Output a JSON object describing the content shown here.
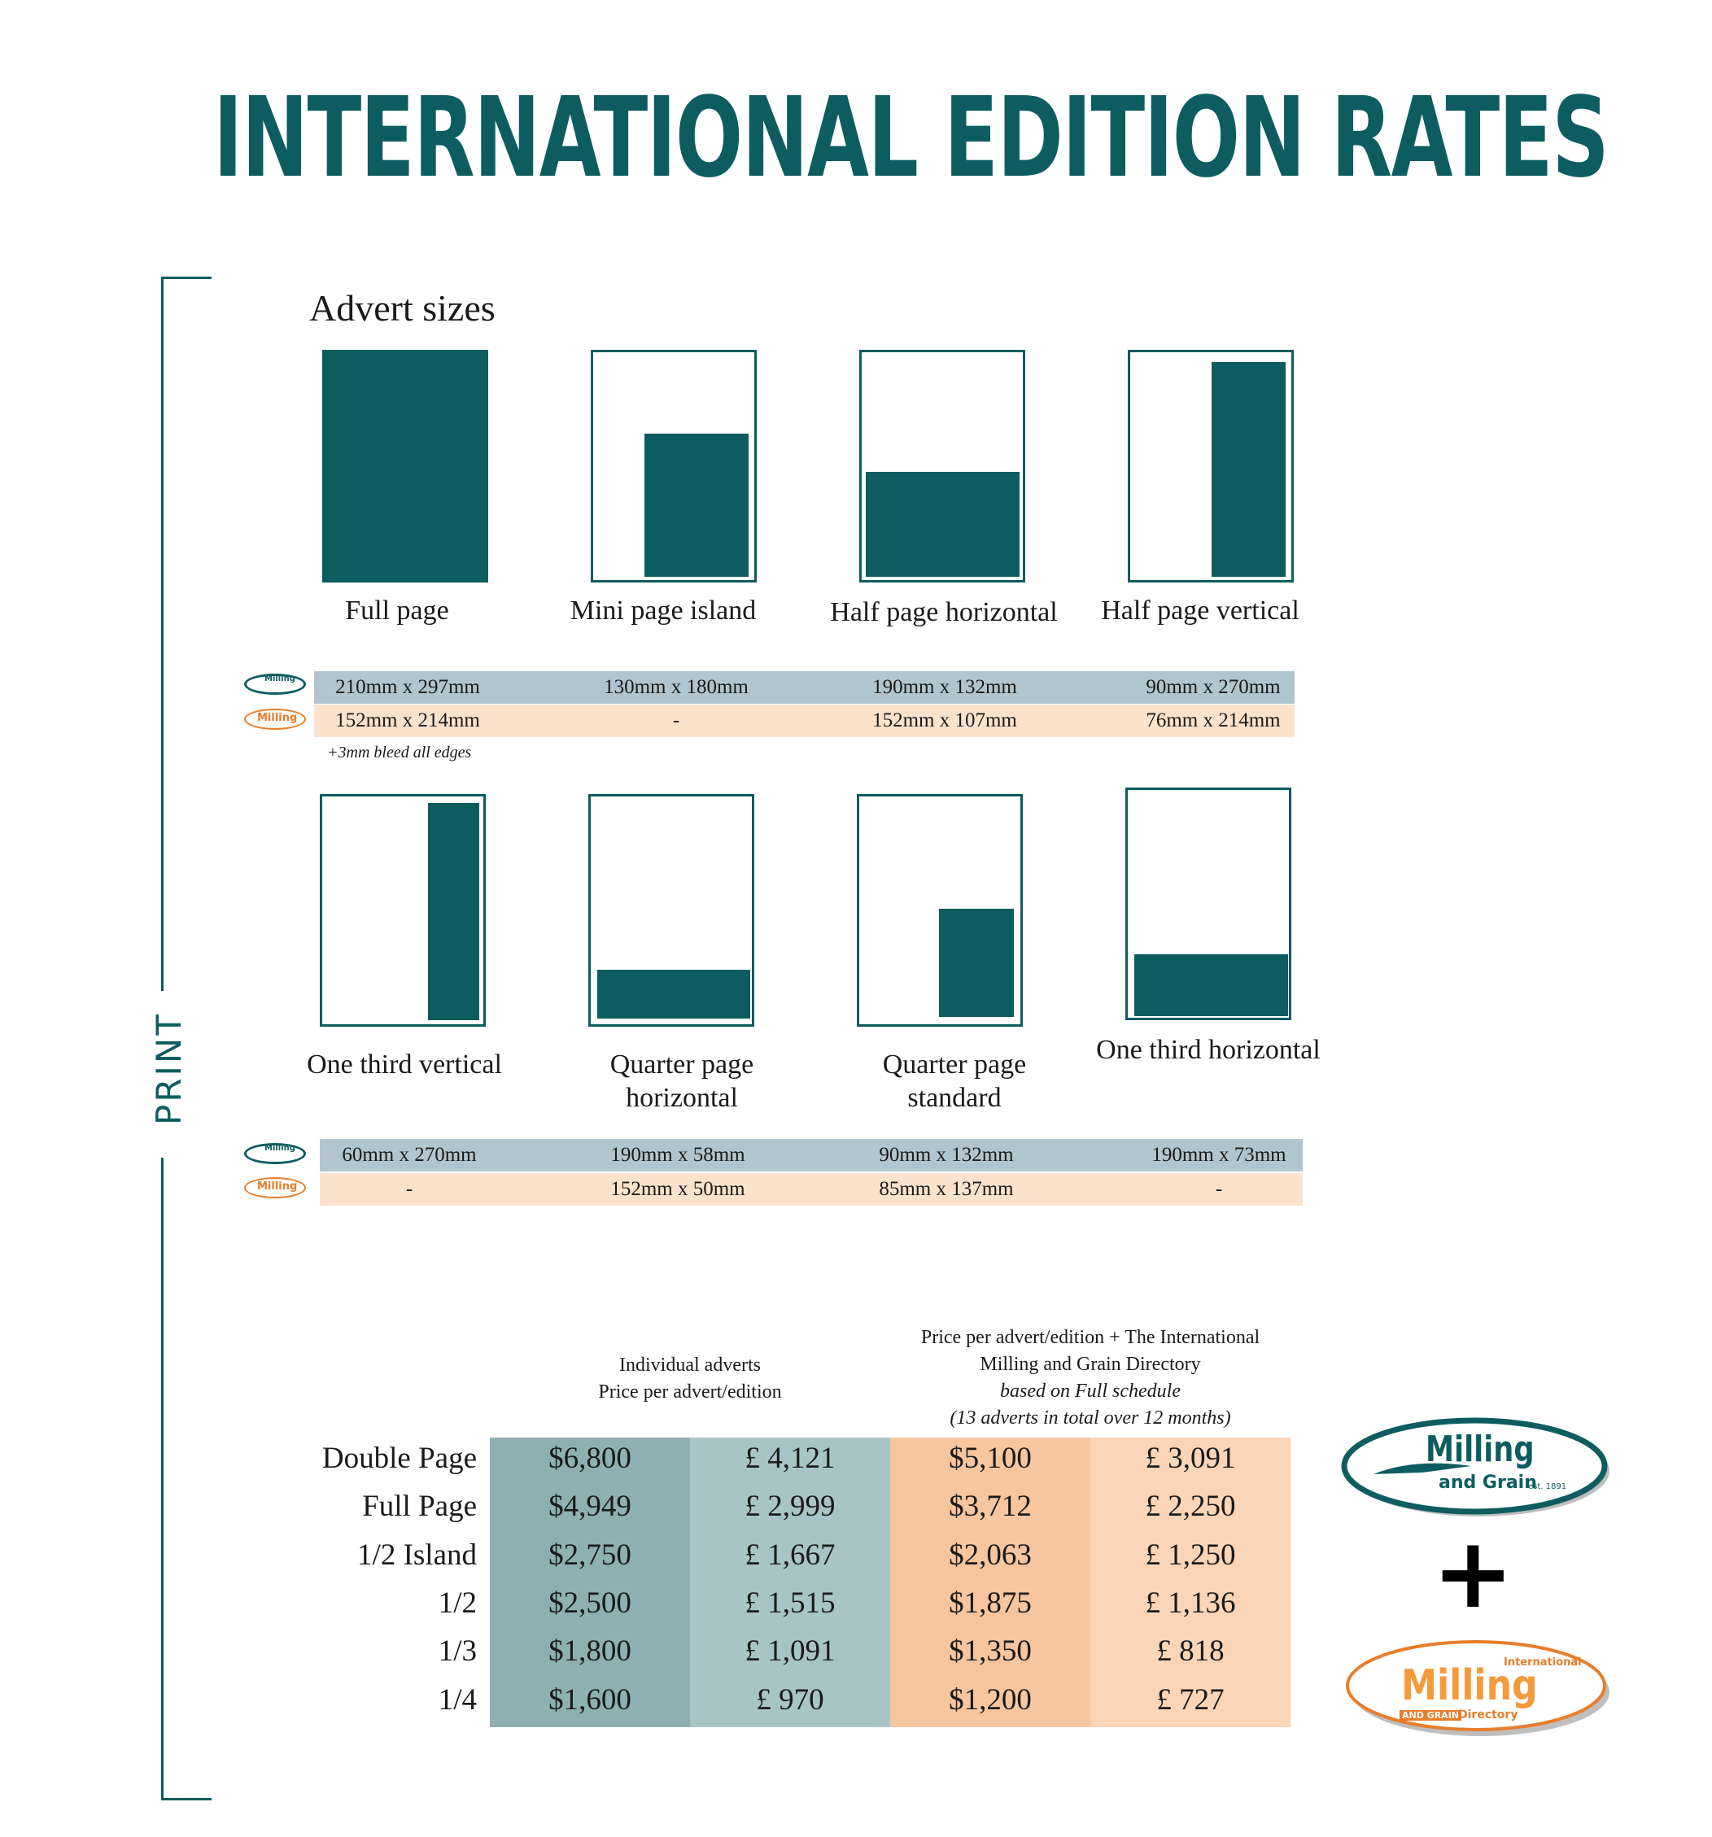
{
  "title": "INTERNATIONAL EDITION RATES",
  "section_label": "PRINT",
  "advert_sizes_heading": "Advert sizes",
  "sizes_row1": [
    {
      "caption": "Full page",
      "mg": "210mm x 297mm",
      "im": "152mm x 214mm"
    },
    {
      "caption": "Mini page island",
      "mg": "130mm x 180mm",
      "im": "-"
    },
    {
      "caption": "Half page horizontal",
      "mg": "190mm x 132mm",
      "im": "152mm x 107mm"
    },
    {
      "caption": "Half page vertical",
      "mg": "90mm x 270mm",
      "im": "76mm x 214mm"
    }
  ],
  "bleed_note": "+3mm bleed all edges",
  "sizes_row2": [
    {
      "caption": "One third vertical",
      "mg": "60mm x 270mm",
      "im": "-"
    },
    {
      "caption": "Quarter page horizontal",
      "mg": "190mm x 58mm",
      "im": "152mm x 50mm"
    },
    {
      "caption": "Quarter page standard",
      "mg": "90mm x 132mm",
      "im": "85mm x 137mm"
    },
    {
      "caption": "One third horizontal",
      "mg": "190mm x 73mm",
      "im": "-"
    }
  ],
  "logos": {
    "mg_name": "Milling",
    "mg_sub": "and Grain",
    "mg_est": "est. 1891",
    "im_name": "Milling",
    "im_intl": "International",
    "im_sub": "AND GRAIN",
    "im_dir": "Directory",
    "plus": "+"
  },
  "price_headers": {
    "individual_line1": "Individual adverts",
    "individual_line2": "Price per advert/edition",
    "package_line1": "Price per advert/edition + The International",
    "package_line2": "Milling and Grain Directory",
    "package_line3": "based on Full schedule",
    "package_line4": "(13 adverts in total over 12 months)"
  },
  "prices": [
    {
      "label": "Double Page",
      "usd": "$6,800",
      "gbp": "£ 4,121",
      "pkg_usd": "$5,100",
      "pkg_gbp": "£ 3,091"
    },
    {
      "label": "Full Page",
      "usd": "$4,949",
      "gbp": "£ 2,999",
      "pkg_usd": "$3,712",
      "pkg_gbp": "£ 2,250"
    },
    {
      "label": "1/2 Island",
      "usd": "$2,750",
      "gbp": "£ 1,667",
      "pkg_usd": "$2,063",
      "pkg_gbp": "£ 1,250"
    },
    {
      "label": "1/2",
      "usd": "$2,500",
      "gbp": "£ 1,515",
      "pkg_usd": "$1,875",
      "pkg_gbp": "£ 1,136"
    },
    {
      "label": "1/3",
      "usd": "$1,800",
      "gbp": "£ 1,091",
      "pkg_usd": "$1,350",
      "pkg_gbp": "£ 818"
    },
    {
      "label": "1/4",
      "usd": "$1,600",
      "gbp": "£ 970",
      "pkg_usd": "$1,200",
      "pkg_gbp": "£ 727"
    }
  ],
  "colors": {
    "teal": "#0d5d60",
    "blue_row": "#b0c5cf",
    "peach_row": "#fbe2cd",
    "usd_col": "#8fb0b3",
    "gbp_col": "#a9c4c6",
    "pkg_usd_col": "#f7c59e",
    "pkg_gbp_col": "#fad5b7",
    "orange": "#e87d2a"
  }
}
